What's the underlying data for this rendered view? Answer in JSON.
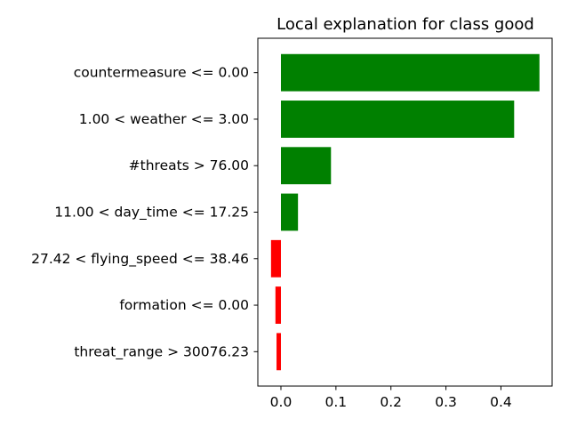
{
  "chart_data": {
    "type": "bar",
    "orientation": "horizontal",
    "title": "Local explanation for class good",
    "xlabel": "",
    "ylabel": "",
    "categories": [
      "threat_range > 30076.23",
      "formation <= 0.00",
      "27.42 < flying_speed <= 38.46",
      "11.00 < day_time <= 17.25",
      "#threats > 76.00",
      "1.00 < weather <= 3.00",
      "countermeasure <= 0.00"
    ],
    "values": [
      -0.008,
      -0.01,
      -0.018,
      0.031,
      0.091,
      0.424,
      0.47
    ],
    "xlim": [
      -0.042,
      0.493
    ],
    "xticks": [
      0.0,
      0.1,
      0.2,
      0.3,
      0.4
    ],
    "xtick_labels": [
      "0.0",
      "0.1",
      "0.2",
      "0.3",
      "0.4"
    ],
    "colors": {
      "positive": "#008000",
      "negative": "#ff0000"
    },
    "grid": false,
    "legend": "none"
  }
}
